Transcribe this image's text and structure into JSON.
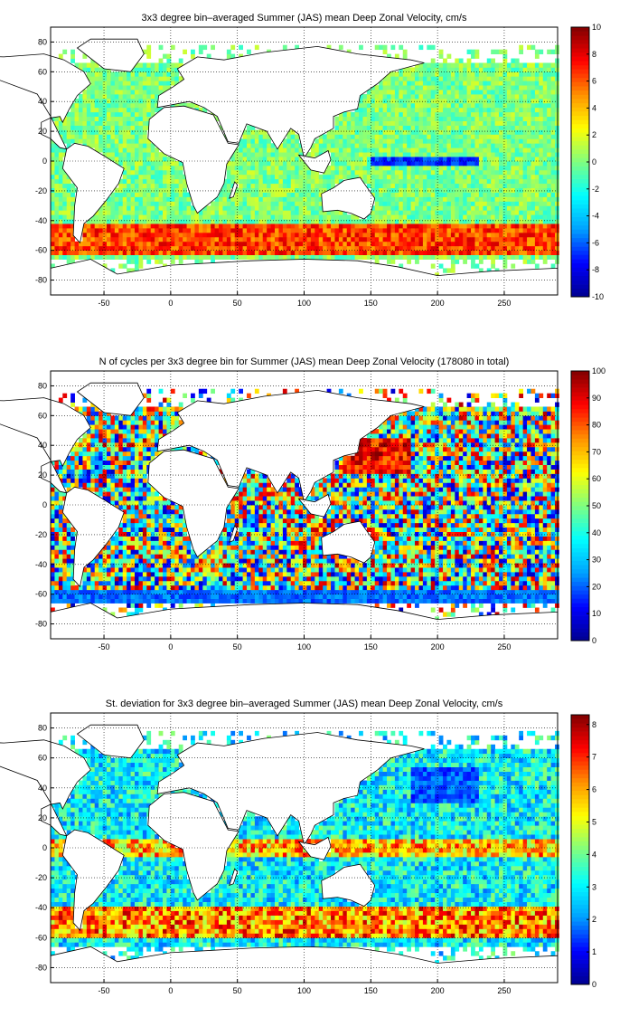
{
  "colors": {
    "scale": [
      "#00008f",
      "#0000ff",
      "#00a0ff",
      "#00ffff",
      "#7fff80",
      "#ffff00",
      "#ff9000",
      "#ff0000",
      "#800000"
    ],
    "grid": "#000000",
    "land": "#ffffff"
  },
  "chart_data": [
    {
      "id": "mean",
      "type": "heatmap",
      "title": "3x3 degree bin–averaged Summer (JAS) mean Deep Zonal Velocity, cm/s",
      "xlabel": "",
      "ylabel": "",
      "xlim": [
        -90,
        290
      ],
      "ylim": [
        -90,
        90
      ],
      "xticks": [
        -50,
        0,
        50,
        100,
        150,
        200,
        250
      ],
      "yticks": [
        -80,
        -60,
        -40,
        -20,
        0,
        20,
        40,
        60,
        80
      ],
      "grid": true,
      "bin_size_deg": 3,
      "colorbar": {
        "min": -10,
        "max": 10,
        "ticks": [
          -10,
          -8,
          -6,
          -4,
          -2,
          0,
          2,
          4,
          6,
          8,
          10
        ]
      },
      "features": [
        {
          "feature": "Antarctic Circumpolar Current band",
          "lat_range": [
            -62,
            -42
          ],
          "value": 8
        },
        {
          "feature": "Equatorial Pacific westward band",
          "lat_range": [
            -2,
            2
          ],
          "lon_range": [
            150,
            230
          ],
          "value": -8
        },
        {
          "feature": "Interior ocean background",
          "value": 0
        }
      ]
    },
    {
      "id": "count",
      "type": "heatmap",
      "title": "N of cycles per 3x3 degree bin for Summer (JAS) mean Deep Zonal Velocity (178080 in total)",
      "xlabel": "",
      "ylabel": "",
      "xlim": [
        -90,
        290
      ],
      "ylim": [
        -90,
        90
      ],
      "xticks": [
        -50,
        0,
        50,
        100,
        150,
        200,
        250
      ],
      "yticks": [
        -80,
        -60,
        -40,
        -20,
        0,
        20,
        40,
        60,
        80
      ],
      "grid": true,
      "bin_size_deg": 3,
      "total_cycles": 178080,
      "colorbar": {
        "min": 0,
        "max": 100,
        "ticks": [
          0,
          10,
          20,
          30,
          40,
          50,
          60,
          70,
          80,
          90,
          100
        ]
      },
      "features": [
        {
          "feature": "Dense NW Pacific sampling",
          "lat_range": [
            20,
            45
          ],
          "lon_range": [
            130,
            180
          ],
          "value": 100
        },
        {
          "feature": "Sparse Southern Ocean sampling",
          "lat_range": [
            -66,
            -56
          ],
          "value": 15
        },
        {
          "feature": "Interior ocean background",
          "value": 50
        }
      ]
    },
    {
      "id": "std",
      "type": "heatmap",
      "title": "St. deviation for 3x3 degree bin–averaged Summer (JAS) mean Deep Zonal Velocity, cm/s",
      "xlabel": "",
      "ylabel": "",
      "xlim": [
        -90,
        290
      ],
      "ylim": [
        -90,
        90
      ],
      "xticks": [
        -50,
        0,
        50,
        100,
        150,
        200,
        250
      ],
      "yticks": [
        -80,
        -60,
        -40,
        -20,
        0,
        20,
        40,
        60,
        80
      ],
      "grid": true,
      "bin_size_deg": 3,
      "colorbar": {
        "min": 0,
        "max": 8.3,
        "ticks": [
          0,
          1,
          2,
          3,
          4,
          5,
          6,
          7,
          8
        ]
      },
      "features": [
        {
          "feature": "High variability Antarctic Circumpolar Current",
          "lat_range": [
            -60,
            -40
          ],
          "value": 7.5
        },
        {
          "feature": "High variability equatorial band",
          "lat_range": [
            -5,
            5
          ],
          "value": 7
        },
        {
          "feature": "Low variability North Pacific gyre",
          "lat_range": [
            30,
            55
          ],
          "lon_range": [
            180,
            230
          ],
          "value": 1
        }
      ]
    }
  ]
}
